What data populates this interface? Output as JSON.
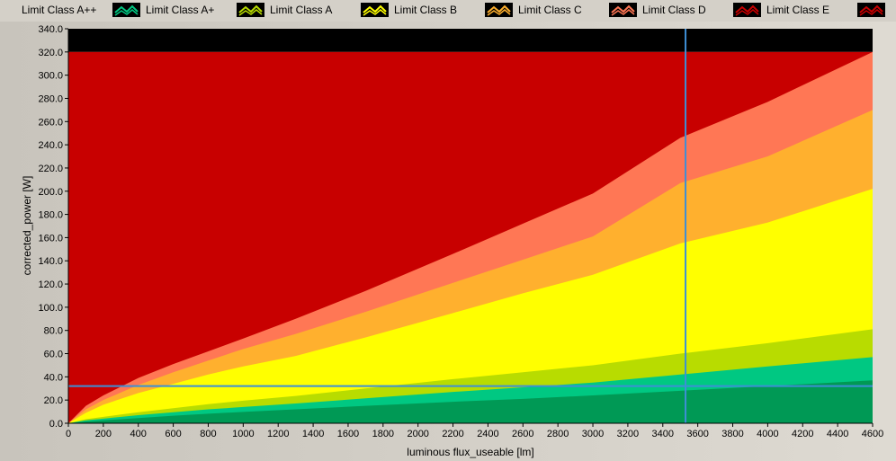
{
  "chart_data": {
    "type": "area",
    "xlabel": "luminous flux_useable [lm]",
    "ylabel": "corrected_power [W]",
    "xlim": [
      0,
      4600
    ],
    "ylim": [
      0,
      340
    ],
    "x_ticks": [
      "0",
      "200",
      "400",
      "600",
      "800",
      "1000",
      "1200",
      "1400",
      "1600",
      "1800",
      "2000",
      "2200",
      "2400",
      "2600",
      "2800",
      "3000",
      "3200",
      "3400",
      "3600",
      "3800",
      "4000",
      "4200",
      "4400",
      "4600"
    ],
    "y_ticks": [
      "0.0",
      "20.0",
      "40.0",
      "60.0",
      "80.0",
      "100.0",
      "120.0",
      "140.0",
      "160.0",
      "180.0",
      "200.0",
      "220.0",
      "240.0",
      "260.0",
      "280.0",
      "300.0",
      "320.0",
      "340.0"
    ],
    "y_max_region": 320,
    "series": [
      {
        "name": "Limit Class A++",
        "color": "#009955",
        "x": [
          0,
          100,
          200,
          400,
          600,
          800,
          1000,
          1300,
          1700,
          2200,
          2600,
          3000,
          3500,
          4000,
          4600
        ],
        "y": [
          0,
          1.5,
          2.5,
          4.5,
          6.5,
          8.2,
          9.8,
          12,
          15,
          18.5,
          21,
          24,
          28,
          32,
          37
        ]
      },
      {
        "name": "Limit Class A+",
        "color": "#00c882",
        "x": [
          0,
          100,
          200,
          400,
          600,
          800,
          1000,
          1300,
          1700,
          2200,
          2600,
          3000,
          3500,
          4000,
          4600
        ],
        "y": [
          0,
          2.5,
          4,
          7,
          9.5,
          12,
          14,
          17,
          21.5,
          27,
          31,
          35,
          42,
          49,
          57
        ]
      },
      {
        "name": "Limit Class A",
        "color": "#b8dc00",
        "x": [
          0,
          100,
          200,
          400,
          600,
          800,
          1000,
          1300,
          1700,
          2200,
          2600,
          3000,
          3500,
          4000,
          4600
        ],
        "y": [
          0,
          3.5,
          5.5,
          9.5,
          13,
          16.5,
          19.5,
          23.5,
          30,
          38,
          44,
          50,
          60,
          69,
          81
        ]
      },
      {
        "name": "Limit Class B",
        "color": "#ffff00",
        "x": [
          0,
          100,
          200,
          400,
          600,
          800,
          1000,
          1300,
          1700,
          2200,
          2600,
          3000,
          3500,
          4000,
          4600
        ],
        "y": [
          0,
          9,
          16,
          26,
          34,
          42,
          49,
          58,
          74,
          95,
          112,
          128,
          155,
          173,
          202
        ]
      },
      {
        "name": "Limit Class C",
        "color": "#ffb02e",
        "x": [
          0,
          100,
          200,
          400,
          600,
          800,
          1000,
          1300,
          1700,
          2200,
          2600,
          3000,
          3500,
          4000,
          4600
        ],
        "y": [
          0,
          12,
          20,
          33,
          44,
          54,
          64,
          77,
          96,
          121,
          141,
          161,
          207,
          230,
          270
        ]
      },
      {
        "name": "Limit Class D",
        "color": "#ff7755",
        "x": [
          0,
          100,
          200,
          400,
          600,
          800,
          1000,
          1300,
          1700,
          2200,
          2600,
          3000,
          3500,
          4000,
          4600
        ],
        "y": [
          0,
          15,
          24,
          39,
          51,
          62,
          73,
          90,
          114,
          146,
          172,
          198,
          246,
          277,
          320
        ]
      },
      {
        "name": "Limit Class E",
        "color": "#c80000"
      }
    ],
    "cursor": {
      "x": 3530,
      "y": 32
    }
  },
  "legend_icon": "line-marker-icon",
  "colors": {
    "panel_bg": "#d4d0c8",
    "region_above": "#000000",
    "cursor": "#3d8fd6"
  }
}
